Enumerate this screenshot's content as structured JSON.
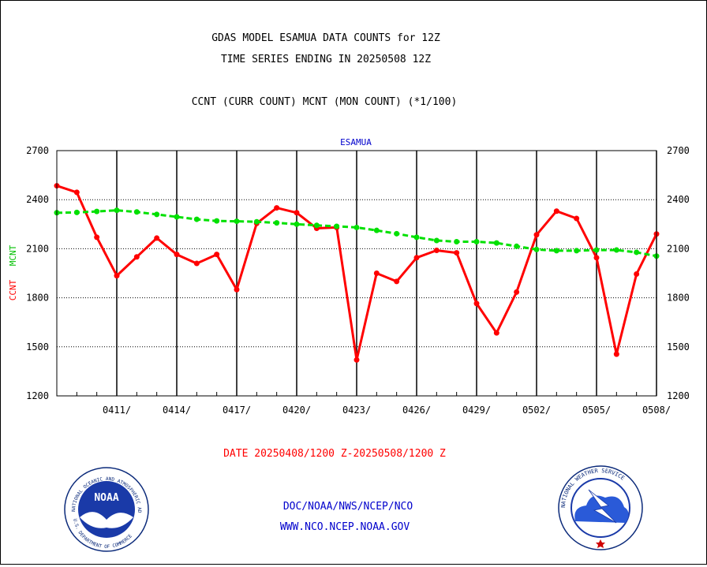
{
  "header": {
    "title_line1": "GDAS MODEL ESAMUA DATA COUNTS for 12Z",
    "title_line2": "TIME SERIES ENDING IN 20250508 12Z",
    "subtitle": "CCNT (CURR COUNT) MCNT (MON COUNT) (*1/100)"
  },
  "footer": {
    "date_range": "DATE 20250408/1200 Z-20250508/1200 Z",
    "org_path": "DOC/NOAA/NWS/NCEP/NCO",
    "website": "WWW.NCO.NCEP.NOAA.GOV"
  },
  "logos": {
    "noaa_text": "NOAA",
    "noaa_ring_text": "NATIONAL OCEANIC AND ATMOSPHERIC ADMINISTRATION",
    "noaa_ring_bottom": "U.S. DEPARTMENT OF COMMERCE",
    "nws_ring_text": "NATIONAL WEATHER SERVICE"
  },
  "colors": {
    "ccnt": "#ff0000",
    "mcnt": "#00e000",
    "title": "#000000",
    "footer_red": "#ff0000",
    "footer_blue": "#0000cc",
    "panel_label": "#0000cc"
  },
  "chart_data": {
    "type": "line",
    "panel_label": "ESAMUA",
    "ylabel_ccnt": "CCNT",
    "ylabel_mcnt": "MCNT",
    "ylim": [
      1200,
      2700
    ],
    "yticks": [
      1200,
      1500,
      1800,
      2100,
      2400,
      2700
    ],
    "xlim": [
      "20250408 12Z",
      "20250508 12Z"
    ],
    "xtick_labels": [
      "0411/",
      "0414/",
      "0417/",
      "0420/",
      "0423/",
      "0426/",
      "0429/",
      "0502/",
      "0505/",
      "0508/"
    ],
    "xtick_days": [
      3,
      6,
      9,
      12,
      15,
      18,
      21,
      24,
      27,
      30
    ],
    "grid": true,
    "x": [
      "0408",
      "0409",
      "0410",
      "0411",
      "0412",
      "0413",
      "0414",
      "0415",
      "0416",
      "0417",
      "0418",
      "0419",
      "0420",
      "0421",
      "0422",
      "0423",
      "0424",
      "0425",
      "0426",
      "0427",
      "0428",
      "0429",
      "0430",
      "0501",
      "0502",
      "0503",
      "0504",
      "0505",
      "0506",
      "0507",
      "0508"
    ],
    "series": [
      {
        "name": "CCNT",
        "values": [
          2485,
          2445,
          2170,
          1935,
          2050,
          2165,
          2065,
          2010,
          2065,
          1850,
          2255,
          2350,
          2320,
          2225,
          2230,
          1420,
          1950,
          1900,
          2045,
          2090,
          2075,
          1765,
          1585,
          1835,
          2185,
          2330,
          2285,
          2045,
          1455,
          1945,
          2190
        ]
      },
      {
        "name": "MCNT",
        "values": [
          2320,
          2322,
          2328,
          2335,
          2325,
          2310,
          2295,
          2280,
          2270,
          2268,
          2265,
          2258,
          2250,
          2243,
          2237,
          2230,
          2212,
          2192,
          2170,
          2150,
          2143,
          2143,
          2135,
          2115,
          2095,
          2088,
          2088,
          2092,
          2092,
          2078,
          2055
        ]
      }
    ]
  }
}
